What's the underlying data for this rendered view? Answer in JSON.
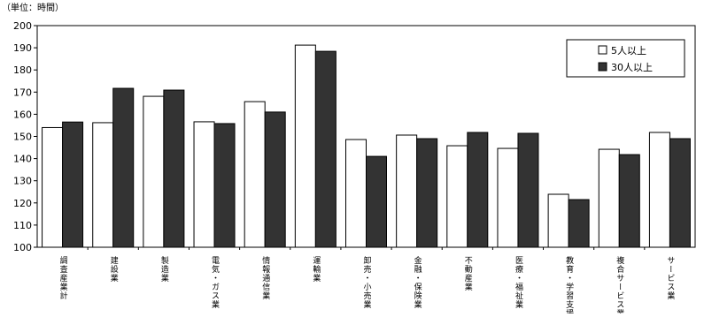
{
  "chart_data": {
    "type": "bar",
    "unit_note": "（単位：時間）",
    "categories": [
      "調査産業計",
      "建設業",
      "製造業",
      "電気・ガス業",
      "情報通信業",
      "運輸業",
      "卸売・小売業",
      "金融・保険業",
      "不動産業",
      "医療・福祉業",
      "教育・学習支援業",
      "複合サービス業",
      "サービス業"
    ],
    "series": [
      {
        "name": "5人以上",
        "color": "#ffffff",
        "values": [
          154,
          156.2,
          168.1,
          156.6,
          165.7,
          191.2,
          148.6,
          150.6,
          145.8,
          144.6,
          123.9,
          144.2,
          151.8
        ]
      },
      {
        "name": "30人以上",
        "color": "#333333",
        "values": [
          156.5,
          171.7,
          170.9,
          155.8,
          161,
          188.4,
          141,
          149,
          151.8,
          151.4,
          121.5,
          141.8,
          149
        ]
      }
    ],
    "ylim": [
      100,
      200
    ],
    "yticks": [
      100,
      110,
      120,
      130,
      140,
      150,
      160,
      170,
      180,
      190,
      200
    ],
    "legend": "upper-right"
  }
}
